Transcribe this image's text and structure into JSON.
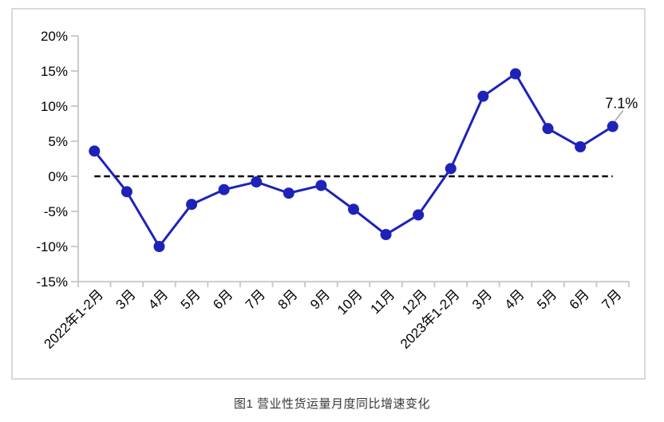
{
  "figure": {
    "caption": "图1 营业性货运量月度同比增速变化"
  },
  "chart_data": {
    "type": "line",
    "title": "图1 营业性货运量月度同比增速变化",
    "categories": [
      "2022年1-2月",
      "3月",
      "4月",
      "5月",
      "6月",
      "7月",
      "8月",
      "9月",
      "10月",
      "11月",
      "12月",
      "2023年1-2月",
      "3月",
      "4月",
      "5月",
      "6月",
      "7月"
    ],
    "values": [
      3.6,
      -2.2,
      -10.0,
      -4.0,
      -1.9,
      -0.8,
      -2.4,
      -1.3,
      -4.7,
      -8.3,
      -5.5,
      1.1,
      11.4,
      14.6,
      6.8,
      4.2,
      7.1
    ],
    "unit": "%",
    "xlabel": "",
    "ylabel": "",
    "ylim": [
      -15,
      20
    ],
    "ytick_step": 5,
    "ytick_labels": [
      "20%",
      "15%",
      "10%",
      "5%",
      "0%",
      "-5%",
      "-10%",
      "-15%"
    ],
    "grid": false,
    "legend": false,
    "zero_line_style": "dashed",
    "annotation": {
      "text": "7.1%",
      "index": 16
    },
    "colors": {
      "series": "#1e22b8",
      "axis": "#c6c6c6",
      "zero_line": "#000000",
      "leader": "#a8a8a8",
      "border": "#d9d9d9",
      "label_text": "#000000",
      "caption_text": "#383838"
    }
  }
}
